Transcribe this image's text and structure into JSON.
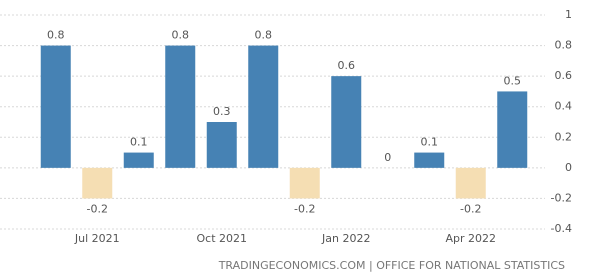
{
  "chart_data": {
    "type": "bar",
    "categories": [
      null,
      "Jul 2021",
      null,
      null,
      "Oct 2021",
      null,
      null,
      "Jan 2022",
      null,
      null,
      "Apr 2022",
      null
    ],
    "values": [
      0.8,
      -0.2,
      0.1,
      0.8,
      0.3,
      0.8,
      -0.2,
      0.6,
      0,
      0.1,
      -0.2,
      0.5
    ],
    "positive_color": "#4682b4",
    "negative_color": "#f5deb3",
    "ylim": [
      -0.4,
      1
    ],
    "yticks": [
      1,
      0.8,
      0.6,
      0.4,
      0.2,
      0,
      -0.2,
      -0.4
    ],
    "grid": true,
    "source": "TRADINGECONOMICS.COM | OFFICE FOR NATIONAL STATISTICS"
  }
}
